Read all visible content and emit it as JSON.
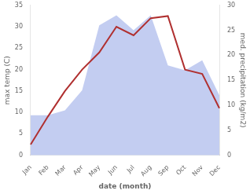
{
  "chart_data": {
    "type": "line",
    "categories": [
      "Jan",
      "Feb",
      "Mar",
      "Apr",
      "May",
      "Jun",
      "Jul",
      "Aug",
      "Sep",
      "Oct",
      "Nov",
      "Dec"
    ],
    "series": [
      {
        "type": "area",
        "color": "#b8c4ee",
        "axis": "y2",
        "values": [
          8.0,
          8.0,
          9.0,
          13.0,
          26.0,
          28.0,
          25.0,
          28.0,
          18.0,
          17.0,
          19.0,
          12.0
        ]
      },
      {
        "type": "line",
        "color": "#b03030",
        "values": [
          2.5,
          9.0,
          15.0,
          20.0,
          24.0,
          30.0,
          28.0,
          32.0,
          32.5,
          20.0,
          19.0,
          11.0
        ]
      }
    ],
    "x_label": "date (month)",
    "y_label": "max temp (C)",
    "y2_label": "med. precipitation (kg/m2)",
    "ylim": [
      0,
      35
    ],
    "yticks": [
      0,
      5,
      10,
      15,
      20,
      25,
      30,
      35
    ],
    "y2lim": [
      0,
      30
    ],
    "y2ticks": [
      0,
      5,
      10,
      15,
      20,
      25,
      30
    ],
    "grid": false
  }
}
